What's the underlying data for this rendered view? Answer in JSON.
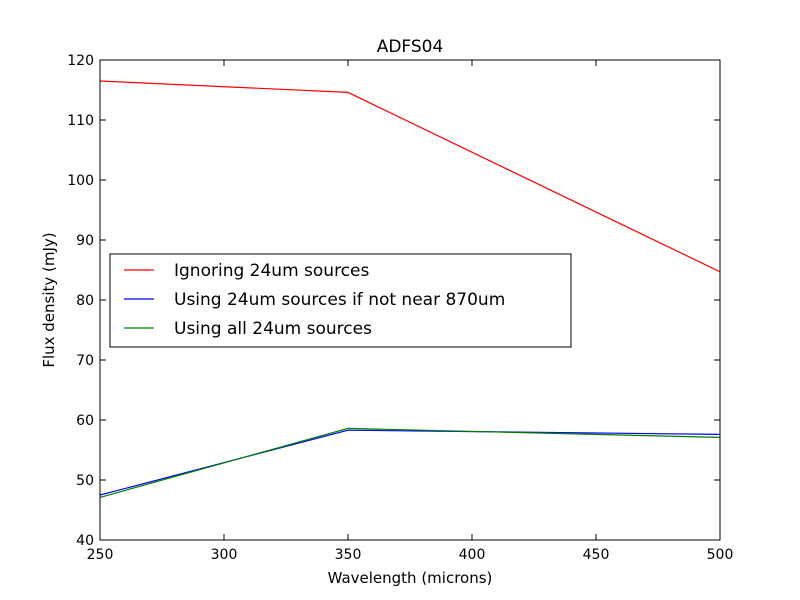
{
  "chart_data": {
    "type": "line",
    "title": "ADFS04",
    "xlabel": "Wavelength (microns)",
    "ylabel": "Flux density (mJy)",
    "xlim": [
      250,
      500
    ],
    "ylim": [
      40,
      120
    ],
    "xticks": [
      250,
      300,
      350,
      400,
      450,
      500
    ],
    "yticks": [
      40,
      50,
      60,
      70,
      80,
      90,
      100,
      110,
      120
    ],
    "grid": false,
    "legend_position": "center-left",
    "x": [
      250,
      350,
      500
    ],
    "series": [
      {
        "name": "Ignoring 24um sources",
        "color": "#ff0000",
        "values": [
          116.5,
          114.6,
          84.7
        ]
      },
      {
        "name": "Using 24um sources if not near 870um",
        "color": "#0000ff",
        "values": [
          47.5,
          58.3,
          57.6
        ]
      },
      {
        "name": "Using all 24um sources",
        "color": "#008000",
        "values": [
          47.1,
          58.6,
          57.1
        ]
      }
    ]
  }
}
